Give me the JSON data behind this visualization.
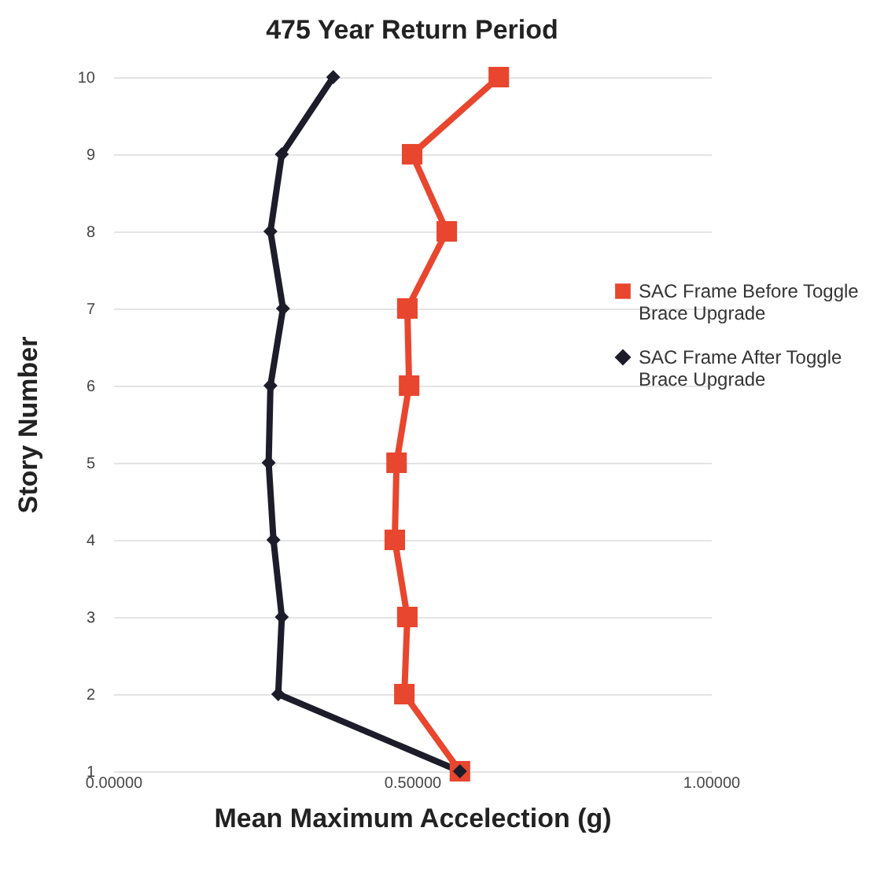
{
  "chart_data": {
    "type": "line",
    "orientation": "horizontal",
    "title": "475 Year Return Period",
    "xlabel": "Mean Maximum Accelection (g)",
    "ylabel": "Story Number",
    "categories": [
      "10",
      "9",
      "8",
      "7",
      "6",
      "5",
      "4",
      "3",
      "2",
      "1"
    ],
    "series": [
      {
        "name": "SAC Frame Before Toggle Brace Upgrade",
        "color": "#e8462e",
        "marker": "square",
        "values": [
          0.645,
          0.5,
          0.558,
          0.492,
          0.495,
          0.474,
          0.471,
          0.492,
          0.487,
          0.58
        ]
      },
      {
        "name": "SAC Frame After Toggle Brace Upgrade",
        "color": "#1c1c2a",
        "marker": "diamond",
        "values": [
          0.368,
          0.282,
          0.263,
          0.284,
          0.263,
          0.26,
          0.268,
          0.282,
          0.276,
          0.58
        ]
      }
    ],
    "xlim": [
      0,
      1
    ],
    "xticks": [
      {
        "value": 0,
        "label": "0.00000"
      },
      {
        "value": 0.5,
        "label": "0.50000"
      },
      {
        "value": 1,
        "label": "1.00000"
      }
    ],
    "grid": "y",
    "legend": "right"
  }
}
